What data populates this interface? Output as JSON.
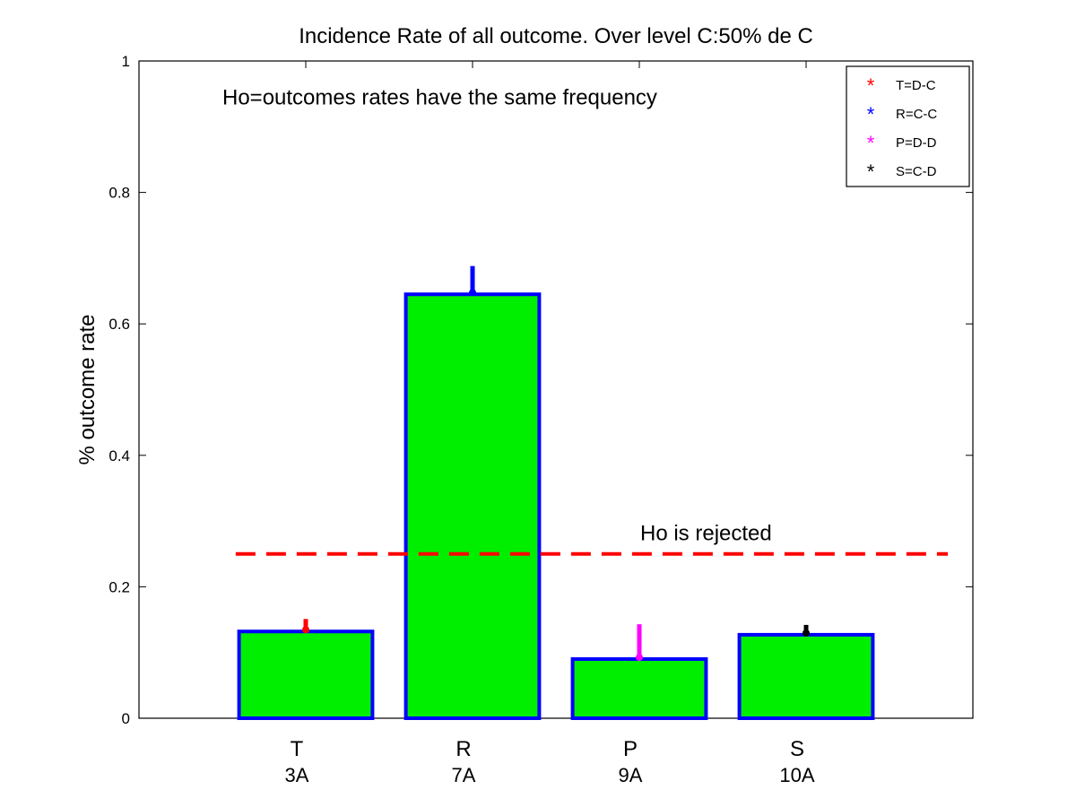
{
  "chart_data": {
    "type": "bar",
    "title": "Incidence Rate of all outcome. Over level C:50% de C",
    "xlabel": "",
    "ylabel": "% outcome rate",
    "ylim": [
      0,
      1
    ],
    "yticks": [
      0,
      0.2,
      0.4,
      0.6,
      0.8,
      1
    ],
    "ytick_labels": [
      "0",
      "0.2",
      "0.4",
      "0.6",
      "0.8",
      "1"
    ],
    "categories": [
      "T",
      "R",
      "P",
      "S"
    ],
    "sublabels": [
      "3A",
      "7A",
      "9A",
      "10A"
    ],
    "values": [
      0.132,
      0.645,
      0.09,
      0.127
    ],
    "error_upper": [
      0.151,
      0.688,
      0.143,
      0.142
    ],
    "error_colors": [
      "#ff0000",
      "#0000ff",
      "#ff00ff",
      "#000000"
    ],
    "bar_fill": "#00ee00",
    "bar_edge": "#0000ff",
    "reference_line": {
      "y": 0.25,
      "x_range": [
        0.58,
        4.85
      ],
      "color": "#ff0000",
      "style": "dashed"
    },
    "annotations": [
      {
        "text": "Ho=outcomes rates have the same frequency",
        "x": 0.5,
        "y": 0.945
      },
      {
        "text": "Ho is rejected",
        "x": 3.4,
        "y": 0.282
      }
    ],
    "legend": {
      "placement": "top-right",
      "entries": [
        {
          "label": "T=D-C",
          "color": "#ff0000",
          "marker": "*"
        },
        {
          "label": "R=C-C",
          "color": "#0000ff",
          "marker": "*"
        },
        {
          "label": "P=D-D",
          "color": "#ff00ff",
          "marker": "*"
        },
        {
          "label": "S=C-D",
          "color": "#000000",
          "marker": "*"
        }
      ]
    },
    "grid": false
  }
}
